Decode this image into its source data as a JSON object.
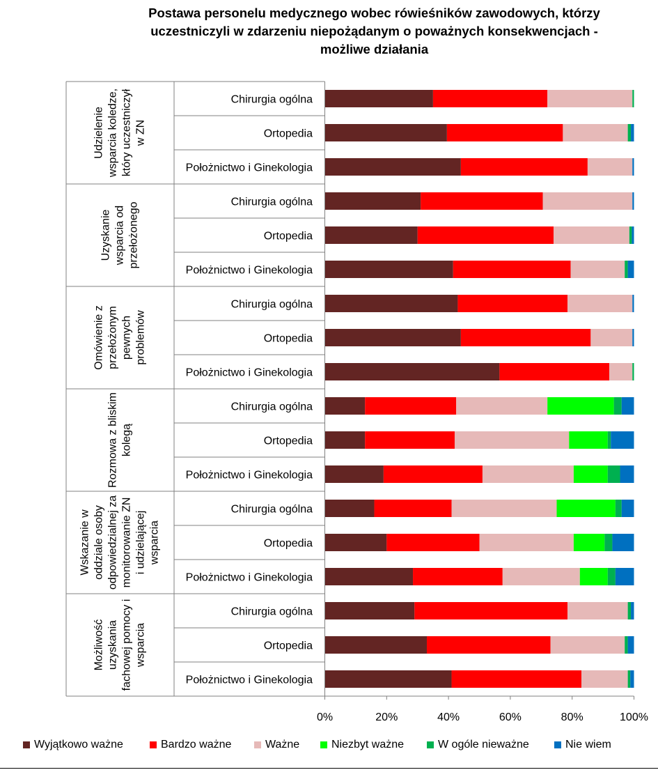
{
  "chart_data": {
    "type": "bar",
    "stacked": "percent",
    "orientation": "horizontal",
    "title": [
      "Postawa personelu medycznego wobec rówieśników zawodowych, którzy",
      "uczestniczyli w zdarzeniu niepożądanym o poważnych konsekwencjach -",
      "możliwe działania"
    ],
    "groups": [
      {
        "label": [
          "Udzielenie",
          "wsparcia koledze,",
          "który uczestniczył",
          "w ZN"
        ],
        "categories": [
          "Chirurgia ogólna",
          "Ortopedia",
          "Położnictwo i Ginekologia"
        ]
      },
      {
        "label": [
          "Uzyskanie",
          "wsparcia od",
          "przełożonego"
        ],
        "categories": [
          "Chirurgia ogólna",
          "Ortopedia",
          "Położnictwo i Ginekologia"
        ]
      },
      {
        "label": [
          "Omówienie z",
          "przełożonym",
          "pewnych",
          "problemów"
        ],
        "categories": [
          "Chirurgia ogólna",
          "Ortopedia",
          "Położnictwo i Ginekologia"
        ]
      },
      {
        "label": [
          "Rozmowa z bliskim",
          "kolegą"
        ],
        "categories": [
          "Chirurgia ogólna",
          "Ortopedia",
          "Położnictwo i Ginekologia"
        ]
      },
      {
        "label": [
          "Wskazanie w",
          "oddziale osoby",
          "odpowiedzialnej za",
          "monitorowanie ZN",
          "i udzielającej",
          "wsparcia"
        ],
        "categories": [
          "Chirurgia ogólna",
          "Ortopedia",
          "Położnictwo i Ginekologia"
        ]
      },
      {
        "label": [
          "Możliwość",
          "uzyskania",
          "fachowej pomocy i",
          "wsparcia"
        ],
        "categories": [
          "Chirurgia ogólna",
          "Ortopedia",
          "Położnictwo i Ginekologia"
        ]
      }
    ],
    "series": [
      {
        "name": "Wyjątkowo ważne",
        "color": "#632523",
        "values": [
          35,
          39.5,
          44,
          31,
          30,
          41.5,
          43,
          44,
          56.5,
          13,
          13,
          19,
          16,
          20,
          28.5,
          29,
          33,
          41
        ]
      },
      {
        "name": "Bardzo ważne",
        "color": "#ff0000",
        "values": [
          37,
          37.5,
          41,
          39.5,
          44,
          38,
          35.5,
          42,
          35.5,
          29.5,
          29,
          32,
          25,
          30,
          29,
          49.5,
          40,
          42
        ]
      },
      {
        "name": "Ważne",
        "color": "#e6b9b8",
        "values": [
          27.5,
          21,
          14.5,
          29,
          24.5,
          17.5,
          21,
          13.5,
          7.5,
          29.5,
          37,
          29.5,
          34,
          30.5,
          25,
          19.5,
          24,
          15
        ]
      },
      {
        "name": "Niezbyt ważne",
        "color": "#00ff00",
        "values": [
          0,
          0,
          0,
          0,
          0,
          0,
          0,
          0,
          0,
          21.5,
          12.5,
          11,
          19,
          10,
          9,
          0,
          0,
          0
        ]
      },
      {
        "name": "W ogóle nieważne",
        "color": "#00b050",
        "values": [
          0.5,
          1,
          0,
          0,
          0.8,
          1,
          0,
          0,
          0.5,
          2.5,
          1,
          4,
          2,
          2.5,
          2.5,
          1,
          1,
          0.8
        ]
      },
      {
        "name": "Nie wiem",
        "color": "#0070c0",
        "values": [
          0,
          1,
          0.5,
          0.5,
          0.7,
          2,
          0.5,
          0.5,
          0,
          4,
          7.5,
          4.5,
          4,
          7,
          6,
          1,
          2,
          1.2
        ]
      }
    ],
    "xaxis": {
      "ticks": [
        0,
        20,
        40,
        60,
        80,
        100
      ],
      "tick_labels": [
        "0%",
        "20%",
        "40%",
        "60%",
        "80%",
        "100%"
      ],
      "range": [
        0,
        100
      ]
    },
    "grid": false,
    "legend_position": "bottom"
  }
}
